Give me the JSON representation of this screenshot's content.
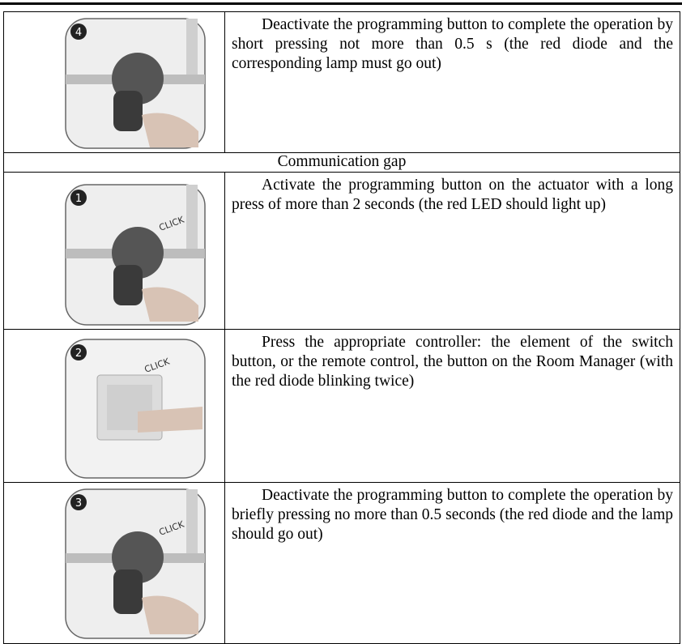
{
  "table": {
    "rows": [
      {
        "badge": "4",
        "text": "Deactivate the programming button to complete the operation by short pressing not more than 0.5 s (the red diode and the corresponding lamp must go out)"
      },
      {
        "text": "Communication gap"
      },
      {
        "badge": "1",
        "click": "CLICK",
        "text": "Activate the programming button on the actuator with a long press of more than 2 seconds (the red LED should light up)"
      },
      {
        "badge": "2",
        "click": "CLICK",
        "text": "Press the appropriate controller: the element of the switch button, or the remote control, the button on the Room Manager (with the red diode blinking twice)"
      },
      {
        "badge": "3",
        "click": "CLICK",
        "text": "Deactivate the programming button to complete the operation by briefly pressing no more than 0.5 seconds (the red diode and the lamp should go out)"
      }
    ]
  }
}
